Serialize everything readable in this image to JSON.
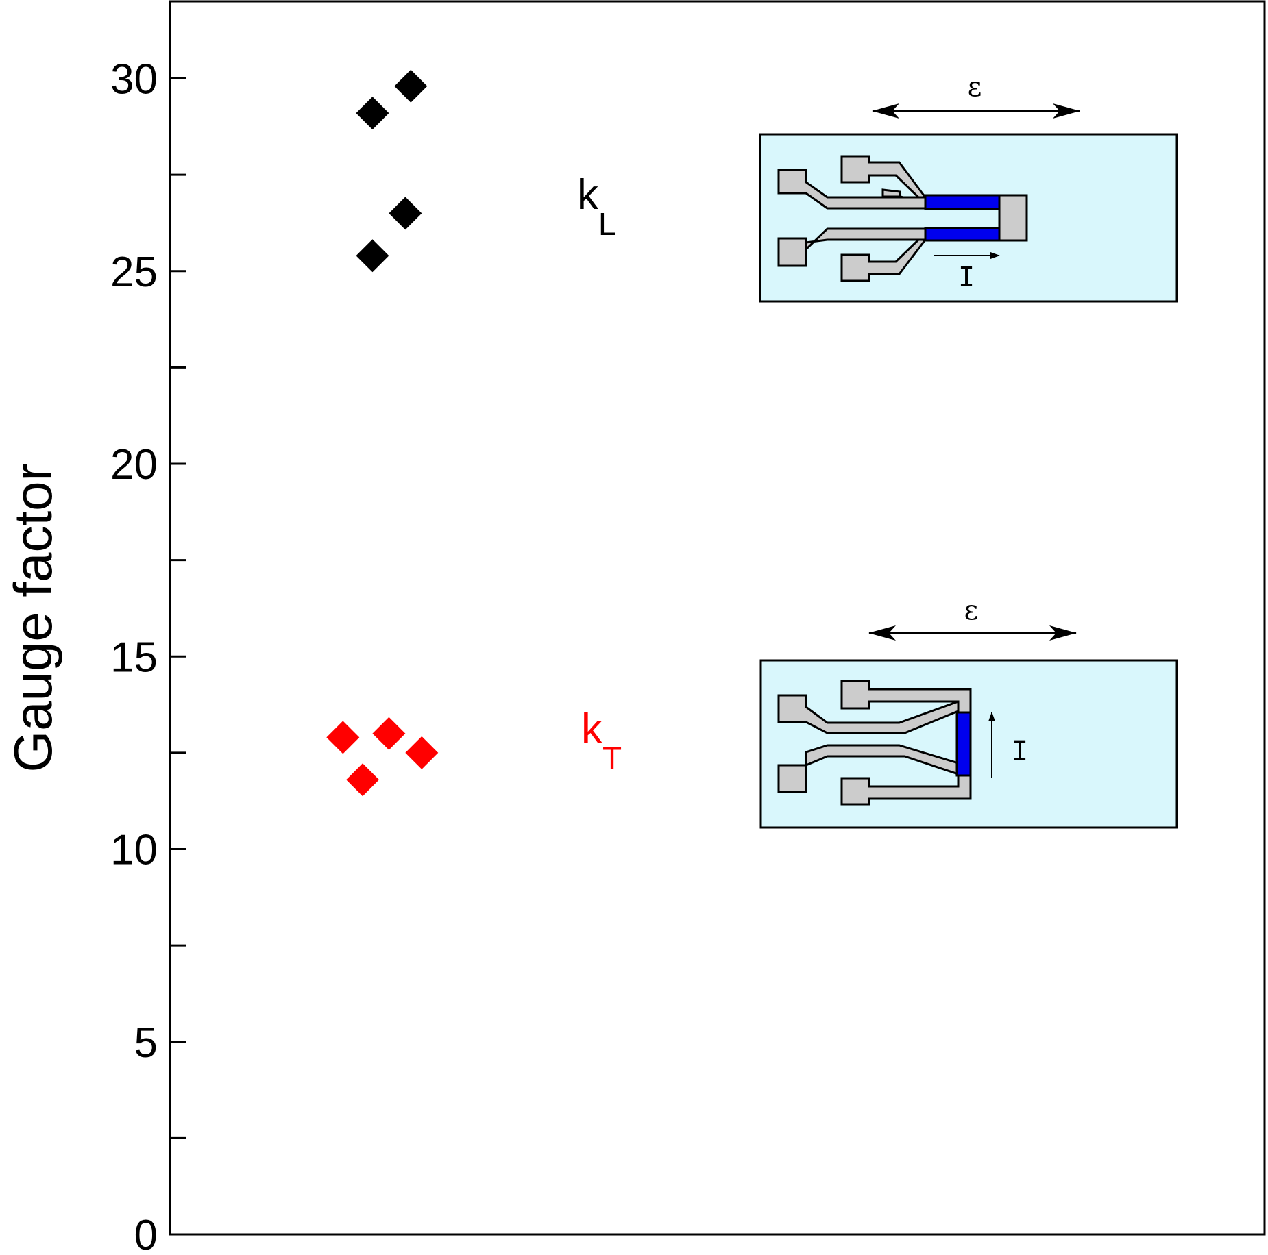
{
  "chart_data": {
    "type": "scatter",
    "title": "",
    "xlabel": "",
    "ylabel": "Gauge factor",
    "ylim": [
      0,
      32
    ],
    "xlim": [
      0,
      10
    ],
    "yticks_major": [
      0,
      5,
      10,
      15,
      20,
      25,
      30
    ],
    "yticks_minor": [
      2.5,
      7.5,
      12.5,
      17.5,
      22.5,
      27.5
    ],
    "ytick_labels": [
      "0",
      "5",
      "10",
      "15",
      "20",
      "25",
      "30"
    ],
    "grid": false,
    "marker": "diamond",
    "series": [
      {
        "name": "kL",
        "label_main": "k",
        "label_sub": "L",
        "color": "#000000",
        "points": [
          {
            "x": 1.85,
            "y": 29.1
          },
          {
            "x": 2.2,
            "y": 29.8
          },
          {
            "x": 2.15,
            "y": 26.5
          },
          {
            "x": 1.85,
            "y": 25.4
          }
        ]
      },
      {
        "name": "kT",
        "label_main": "k",
        "label_sub": "T",
        "color": "#ff0000",
        "points": [
          {
            "x": 1.58,
            "y": 12.9
          },
          {
            "x": 2.0,
            "y": 13.0
          },
          {
            "x": 2.3,
            "y": 12.5
          },
          {
            "x": 1.76,
            "y": 11.8
          }
        ]
      }
    ],
    "insets": [
      {
        "strain_label": "ε",
        "current_label": "I",
        "orientation": "longitudinal"
      },
      {
        "strain_label": "ε",
        "current_label": "I",
        "orientation": "transverse"
      }
    ],
    "colors": {
      "inset_background": "#d9f7fc",
      "gauge_fill": "#cccccc",
      "resistor_fill": "#0000ee"
    }
  }
}
